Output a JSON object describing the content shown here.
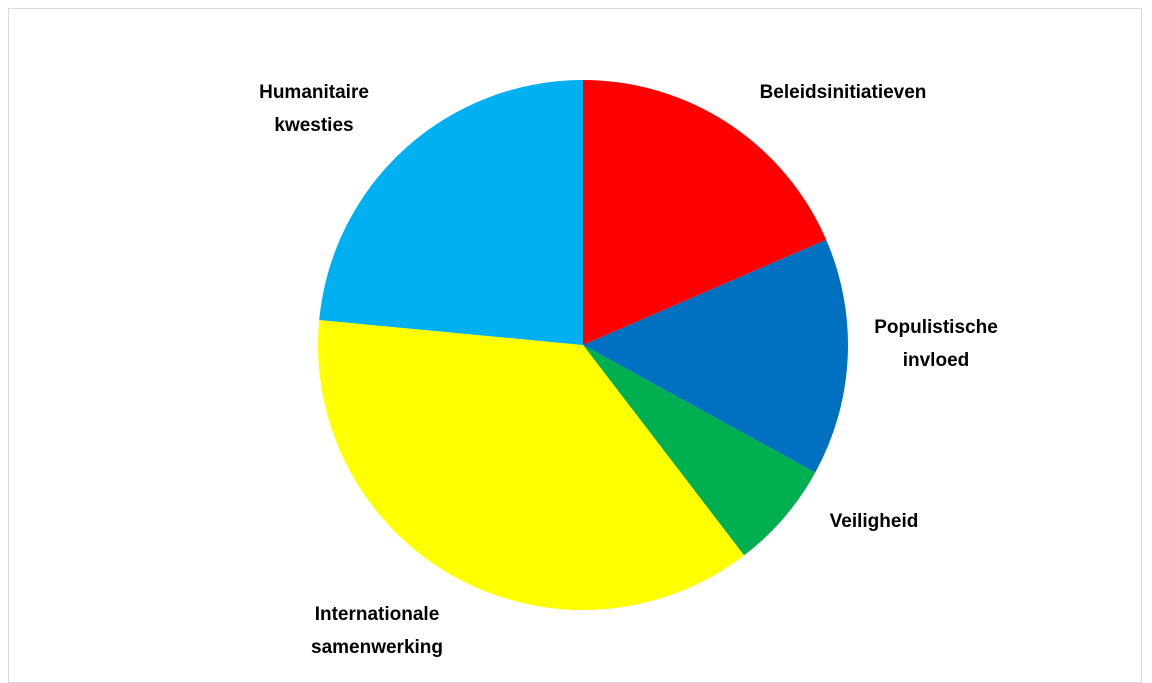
{
  "chart_data": {
    "type": "pie",
    "title": "",
    "start_angle_deg": 0,
    "direction": "clockwise",
    "legend": "none",
    "slices": [
      {
        "label": "Beleidsinitiatieven",
        "value": 18.5,
        "color": "#ff0000"
      },
      {
        "label": "Populistische invloed",
        "value": 14.5,
        "color": "#0070c0"
      },
      {
        "label": "Veiligheid",
        "value": 6.6,
        "color": "#00b050"
      },
      {
        "label": "Internationale samenwerking",
        "value": 36.9,
        "color": "#ffff00"
      },
      {
        "label": "Humanitaire kwesties",
        "value": 23.5,
        "color": "#00b0f0"
      }
    ]
  }
}
